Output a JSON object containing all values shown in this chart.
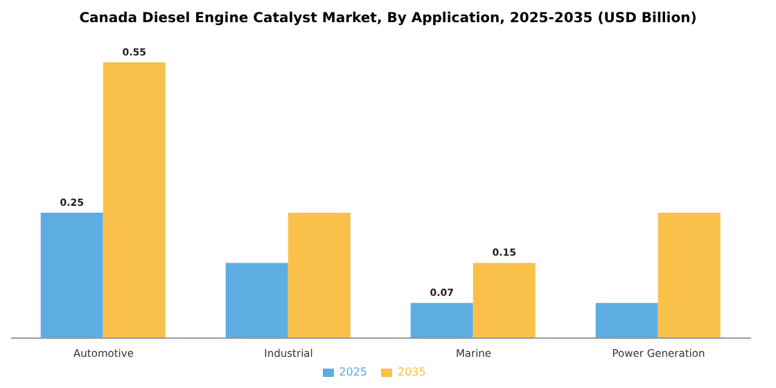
{
  "chart_data": {
    "type": "bar",
    "title": "Canada Diesel Engine Catalyst Market, By Application, 2025-2035 (USD Billion)",
    "categories": [
      "Automotive",
      "Industrial",
      "Marine",
      "Power Generation"
    ],
    "series": [
      {
        "name": "2025",
        "color": "#5dade2",
        "values": [
          0.25,
          0.15,
          0.07,
          0.07
        ],
        "value_labels": [
          "0.25",
          null,
          "0.07",
          null
        ]
      },
      {
        "name": "2035",
        "color": "#f9c04a",
        "values": [
          0.55,
          0.25,
          0.15,
          0.25
        ],
        "value_labels": [
          "0.55",
          null,
          "0.15",
          null
        ]
      }
    ],
    "legend": "bottom",
    "grid": false
  }
}
